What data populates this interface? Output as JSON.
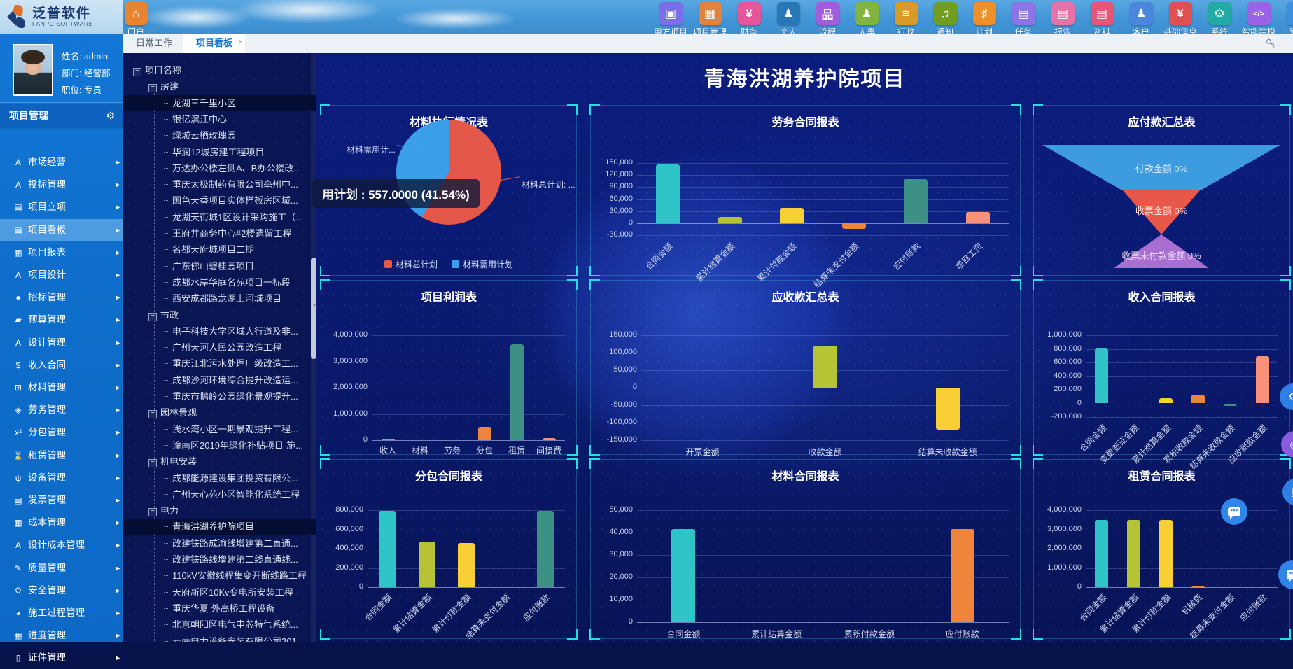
{
  "brand": {
    "cn": "泛普软件",
    "en": "FANPU SOFTWARE"
  },
  "topnav": {
    "portal": {
      "label": "门户",
      "glyph": "⌂",
      "color": "#e8832f"
    },
    "items": [
      {
        "label": "甲方项目",
        "icon": "client-project-icon",
        "glyph": "▣",
        "color": "#7a6fe8"
      },
      {
        "label": "项目管理",
        "icon": "project-mgmt-icon",
        "glyph": "▦",
        "color": "#e0833c"
      },
      {
        "label": "财务",
        "icon": "finance-icon",
        "glyph": "¥",
        "color": "#e5569a"
      },
      {
        "label": "个人",
        "icon": "personal-icon",
        "glyph": "♟",
        "color": "#2878b8"
      },
      {
        "label": "流程",
        "icon": "workflow-icon",
        "glyph": "品",
        "color": "#a25ddc"
      },
      {
        "label": "人事",
        "icon": "hr-icon",
        "glyph": "♟",
        "color": "#82b440"
      },
      {
        "label": "行政",
        "icon": "admin-icon",
        "glyph": "≡",
        "color": "#d89b28"
      },
      {
        "label": "通知",
        "icon": "notice-icon",
        "glyph": "♫",
        "color": "#6f9e20"
      },
      {
        "label": "计划",
        "icon": "plan-icon",
        "glyph": "♯",
        "color": "#ef8f2a"
      },
      {
        "label": "任务",
        "icon": "task-icon",
        "glyph": "▤",
        "color": "#8d75e6"
      },
      {
        "label": "报告",
        "icon": "report-icon",
        "glyph": "▤",
        "color": "#e573a8"
      },
      {
        "label": "资料",
        "icon": "document-icon",
        "glyph": "▤",
        "color": "#e65575"
      },
      {
        "label": "客户",
        "icon": "customer-icon",
        "glyph": "♟",
        "color": "#4a87dd"
      },
      {
        "label": "基础信息",
        "icon": "base-info-icon",
        "glyph": "¥",
        "color": "#e05050"
      },
      {
        "label": "系统",
        "icon": "system-icon",
        "glyph": "⚙",
        "color": "#23aaa4"
      },
      {
        "label": "智能建模",
        "icon": "smart-model-icon",
        "glyph": "</>",
        "color": "#9a63e8"
      },
      {
        "label": "管理",
        "icon": "manage-icon",
        "glyph": "⇅",
        "color": "#3f8fe0"
      }
    ]
  },
  "tabs": [
    {
      "label": "日常工作",
      "active": false
    },
    {
      "label": "项目看板",
      "active": true,
      "close": "×"
    }
  ],
  "user": {
    "name": "姓名: admin",
    "dept": "部门: 经营部",
    "title": "职位: 专员"
  },
  "sidebar": {
    "header": "项目管理",
    "items": [
      {
        "label": "市场经营",
        "glyph": "A"
      },
      {
        "label": "投标管理",
        "glyph": "A"
      },
      {
        "label": "项目立项",
        "glyph": "▤"
      },
      {
        "label": "项目看板",
        "glyph": "▤",
        "selected": true
      },
      {
        "label": "项目报表",
        "glyph": "▦"
      },
      {
        "label": "项目设计",
        "glyph": "A"
      },
      {
        "label": "招标管理",
        "glyph": "●"
      },
      {
        "label": "预算管理",
        "glyph": "▰"
      },
      {
        "label": "设计管理",
        "glyph": "A"
      },
      {
        "label": "收入合同",
        "glyph": "$"
      },
      {
        "label": "材料管理",
        "glyph": "⊞"
      },
      {
        "label": "劳务管理",
        "glyph": "◈"
      },
      {
        "label": "分包管理",
        "glyph": "x²"
      },
      {
        "label": "租赁管理",
        "glyph": "⌛"
      },
      {
        "label": "设备管理",
        "glyph": "ψ"
      },
      {
        "label": "发票管理",
        "glyph": "▤"
      },
      {
        "label": "成本管理",
        "glyph": "▦"
      },
      {
        "label": "设计成本管理",
        "glyph": "A"
      },
      {
        "label": "质量管理",
        "glyph": "✎"
      },
      {
        "label": "安全管理",
        "glyph": "Ω"
      },
      {
        "label": "施工过程管理",
        "glyph": "◕"
      },
      {
        "label": "进度管理",
        "glyph": "▦"
      },
      {
        "label": "证件管理",
        "glyph": "▯"
      }
    ]
  },
  "tree": {
    "rows": [
      {
        "label": "项目名称",
        "level": 0,
        "group": true
      },
      {
        "label": "房建",
        "level": 1,
        "group": true
      },
      {
        "label": "龙湖三千里小区",
        "level": 2,
        "selected": true
      },
      {
        "label": "银亿滨江中心",
        "level": 2
      },
      {
        "label": "绿城云栖玫瑰园",
        "level": 2
      },
      {
        "label": "华润12城房建工程项目",
        "level": 2
      },
      {
        "label": "万达办公楼左侧A、B办公楼改...",
        "level": 2
      },
      {
        "label": "重庆太极制药有限公司亳州中...",
        "level": 2
      },
      {
        "label": "国色天香项目实体样板房区域...",
        "level": 2
      },
      {
        "label": "龙湖天街城1区设计采购施工（...",
        "level": 2
      },
      {
        "label": "王府井商务中心#2楼遗留工程",
        "level": 2
      },
      {
        "label": "名都天府城项目二期",
        "level": 2
      },
      {
        "label": "广东佛山碧桂园项目",
        "level": 2
      },
      {
        "label": "成都水岸华庭名苑项目一标段",
        "level": 2
      },
      {
        "label": "西安成都路龙湖上河城项目",
        "level": 2
      },
      {
        "label": "市政",
        "level": 1,
        "group": true
      },
      {
        "label": "电子科技大学区域人行道及非...",
        "level": 2
      },
      {
        "label": "广州天河人民公园改造工程",
        "level": 2
      },
      {
        "label": "重庆江北污水处理厂级改造工...",
        "level": 2
      },
      {
        "label": "成都沙河环境综合提升改造运...",
        "level": 2
      },
      {
        "label": "重庆市鹅岭公园绿化景观提升...",
        "level": 2
      },
      {
        "label": "园林景观",
        "level": 1,
        "group": true
      },
      {
        "label": "浅水湾小区一期景观提升工程...",
        "level": 2
      },
      {
        "label": "潼南区2019年绿化补贴项目-施...",
        "level": 2
      },
      {
        "label": "机电安装",
        "level": 1,
        "group": true
      },
      {
        "label": "成都能源建设集团投资有限公...",
        "level": 2
      },
      {
        "label": "广州天心苑小区智能化系统工程",
        "level": 2
      },
      {
        "label": "电力",
        "level": 1,
        "group": true
      },
      {
        "label": "青海洪湖养护院项目",
        "level": 2,
        "selected": true
      },
      {
        "label": "改建铁路成渝线增建第二直通...",
        "level": 2
      },
      {
        "label": "改建铁路线增建第二线直通线...",
        "level": 2
      },
      {
        "label": "110kV安徽线程集变开断线路工程",
        "level": 2
      },
      {
        "label": "天府新区10Kv变电所安装工程",
        "level": 2
      },
      {
        "label": "重庆华夏 外高桥工程设备",
        "level": 2
      },
      {
        "label": "北京朝阳区电气中芯特气系统...",
        "level": 2
      },
      {
        "label": "云南电力设备安装有限公司201...",
        "level": 2
      }
    ]
  },
  "dashboard": {
    "title": "青海洪湖养护院项目"
  },
  "tooltip": "用计划 : 557.0000 (41.54%)",
  "palette": [
    "#2fc5c8",
    "#b5c334",
    "#f9cf36",
    "#ef843c",
    "#3d9184",
    "#fb9078"
  ],
  "chart_data": [
    {
      "type": "pie",
      "title": "材料执行情况表",
      "slices": [
        {
          "name": "材料总计划",
          "pct": 58.46,
          "color": "#e4584a"
        },
        {
          "name": "材料需用计划",
          "pct": 41.54,
          "color": "#3a9fe8",
          "value": "557.0000"
        }
      ],
      "callout_left": "材料需用计...",
      "callout_right": "材料总计划: ...",
      "legend": [
        "材料总计划",
        "材料需用计划"
      ],
      "tooltip": "用计划 : 557.0000 (41.54%)"
    },
    {
      "type": "bar",
      "title": "劳务合同报表",
      "ymax": 150000,
      "ymin": -30000,
      "ticks": [
        "150,000",
        "120,000",
        "90,000",
        "60,000",
        "30,000",
        "0",
        "-30,000"
      ],
      "categories": [
        "合同金额",
        "累计结算金额",
        "累计付款金额",
        "结算未支付金额",
        "应付账款",
        "项目工资"
      ],
      "values": [
        147000,
        15000,
        38000,
        -15000,
        110000,
        27000
      ],
      "rotate": true
    },
    {
      "type": "funnel",
      "title": "应付款汇总表",
      "stages": [
        {
          "label": "付款金额 0%",
          "color": "#3d9ce0"
        },
        {
          "label": "收票金额 0%",
          "color": "#e8584a"
        },
        {
          "label": "收票未付款金额 0%",
          "color": "#a86fd0"
        }
      ]
    },
    {
      "type": "bar",
      "title": "项目利润表",
      "ymax": 4000000,
      "ymin": 0,
      "ticks": [
        "4,000,000",
        "3,000,000",
        "2,000,000",
        "1,000,000",
        "0"
      ],
      "categories": [
        "收入",
        "材料",
        "劳务",
        "分包",
        "租赁",
        "间接费"
      ],
      "values": [
        60000,
        0,
        0,
        500000,
        3650000,
        70000
      ],
      "rotate": false
    },
    {
      "type": "bar",
      "title": "应收款汇总表",
      "ymax": 150000,
      "ymin": -150000,
      "ticks": [
        "150,000",
        "100,000",
        "50,000",
        "0",
        "-50,000",
        "-100,000",
        "-150,000"
      ],
      "categories": [
        "开票金额",
        "收款金额",
        "结算未收款金额"
      ],
      "values": [
        0,
        120000,
        -120000
      ],
      "rotate": false
    },
    {
      "type": "bar",
      "title": "收入合同报表",
      "ymax": 1000000,
      "ymin": -200000,
      "ticks": [
        "1,000,000",
        "800,000",
        "600,000",
        "400,000",
        "200,000",
        "0",
        "-200,000"
      ],
      "categories": [
        "合同金额",
        "变更签证金额",
        "累计结算金额",
        "累积收款金额",
        "结算未收款金额",
        "应收账款金额"
      ],
      "values": [
        810000,
        0,
        80000,
        130000,
        -40000,
        690000
      ],
      "rotate": true
    },
    {
      "type": "bar",
      "title": "分包合同报表",
      "ymax": 800000,
      "ymin": 0,
      "ticks": [
        "800,000",
        "600,000",
        "400,000",
        "200,000",
        "0"
      ],
      "categories": [
        "合同金额",
        "累计结算金额",
        "累计付款金额",
        "结算未支付金额",
        "应付账款"
      ],
      "values": [
        790000,
        470000,
        460000,
        0,
        790000
      ],
      "rotate": true
    },
    {
      "type": "bar",
      "title": "材料合同报表",
      "ymax": 50000,
      "ymin": 0,
      "ticks": [
        "50,000",
        "40,000",
        "30,000",
        "20,000",
        "10,000",
        "0"
      ],
      "categories": [
        "合同金额",
        "累计结算金额",
        "累积付款金额",
        "应付账款"
      ],
      "values": [
        41500,
        0,
        0,
        41500
      ],
      "rotate": false
    },
    {
      "type": "bar",
      "title": "租赁合同报表",
      "ymax": 4000000,
      "ymin": 0,
      "ticks": [
        "4,000,000",
        "3,000,000",
        "2,000,000",
        "1,000,000",
        "0"
      ],
      "categories": [
        "合同金额",
        "累计结算金额",
        "累计付款金额",
        "机械费",
        "结算未支付金额",
        "应付账款"
      ],
      "values": [
        3500000,
        3500000,
        3500000,
        30000,
        0,
        0
      ],
      "rotate": true
    }
  ]
}
